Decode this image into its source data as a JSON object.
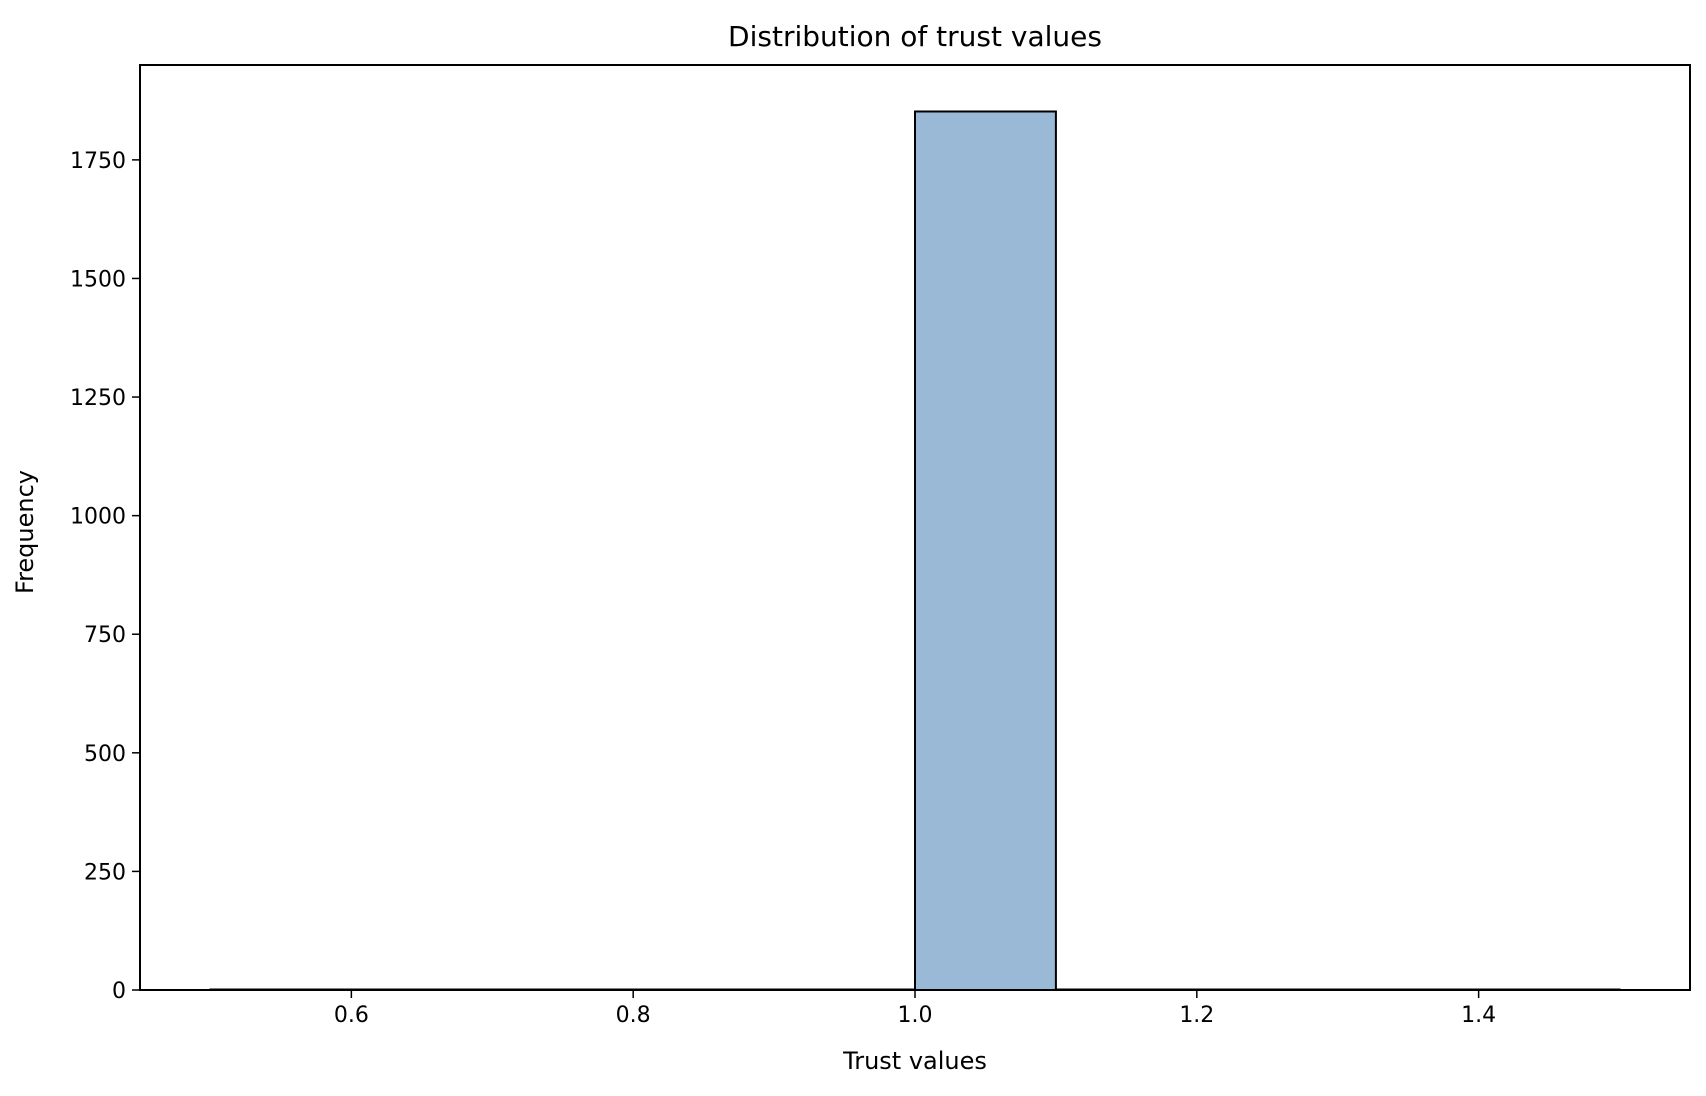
{
  "chart_data": {
    "type": "bar",
    "title": "Distribution of trust values",
    "xlabel": "Trust values",
    "ylabel": "Frequency",
    "xlim": [
      0.45,
      1.55
    ],
    "ylim": [
      0,
      1950
    ],
    "bin_edges": [
      0.5,
      0.6,
      0.7,
      0.8,
      0.9,
      1.0,
      1.1,
      1.2,
      1.3,
      1.4,
      1.5
    ],
    "values": [
      0,
      0,
      0,
      0,
      0,
      1852,
      0,
      0,
      0,
      0
    ],
    "x_ticks": [
      0.6,
      0.8,
      1.0,
      1.2,
      1.4
    ],
    "x_tick_labels": [
      "0.6",
      "0.8",
      "1.0",
      "1.2",
      "1.4"
    ],
    "y_ticks": [
      0,
      250,
      500,
      750,
      1000,
      1250,
      1500,
      1750
    ],
    "y_tick_labels": [
      "0",
      "250",
      "500",
      "750",
      "1000",
      "1250",
      "1500",
      "1750"
    ],
    "bar_color": "#9ab9d6",
    "edge_color": "#000000",
    "grid": false,
    "legend": false
  }
}
